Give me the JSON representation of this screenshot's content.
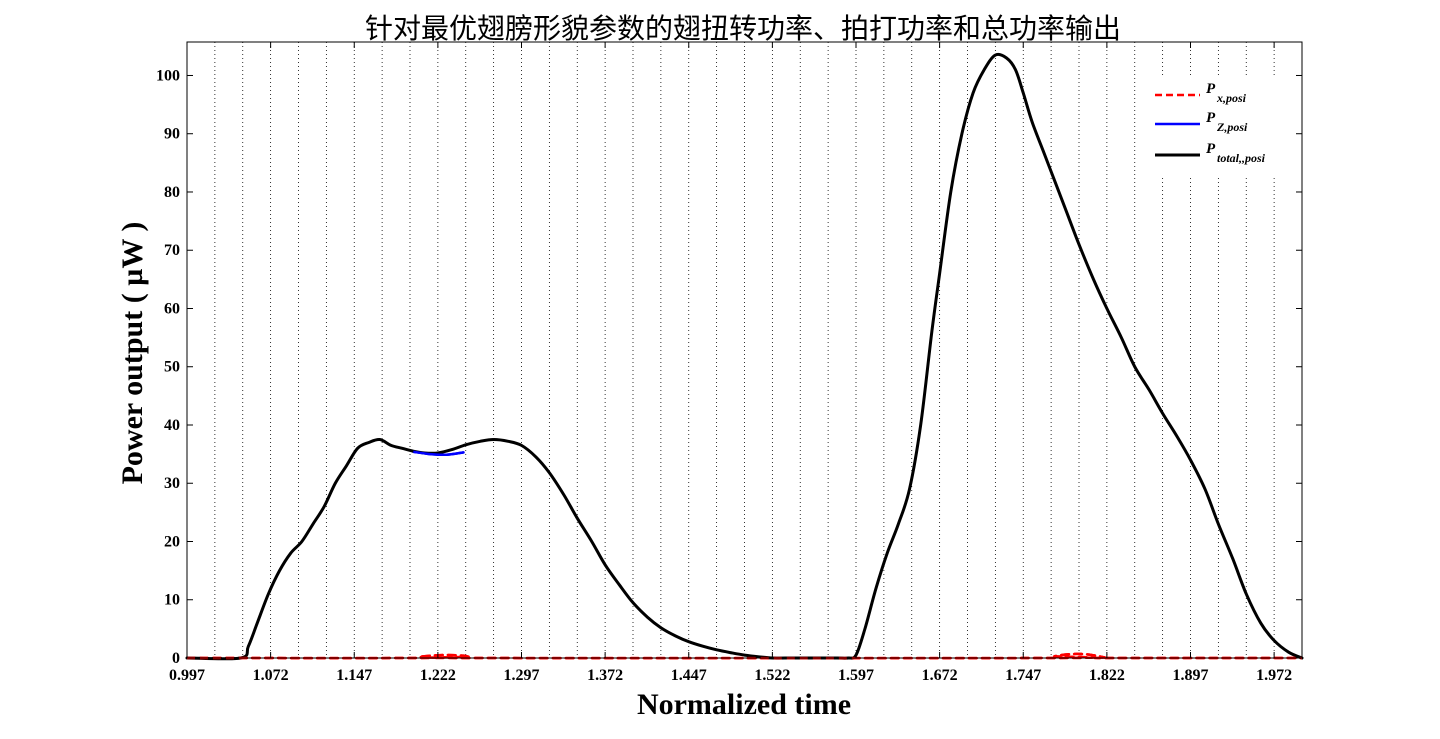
{
  "chart_data": {
    "type": "line",
    "title": "针对最优翅膀形貌参数的翅扭转功率、拍打功率和总功率输出",
    "xlabel": "Normalized time",
    "ylabel": "Power output ( µW )",
    "xlim": [
      0.997,
      1.997
    ],
    "ylim": [
      0,
      103
    ],
    "yticks": [
      0,
      10,
      20,
      30,
      40,
      50,
      60,
      70,
      80,
      90,
      100
    ],
    "xtick_labels": [
      "0.997",
      "1.072",
      "1.147",
      "1.222",
      "1.297",
      "1.372",
      "1.447",
      "1.522",
      "1.597",
      "1.672",
      "1.747",
      "1.822",
      "1.897",
      "1.972"
    ],
    "x_minor_grid_step": 0.025,
    "grid": "vertical dotted",
    "legend": {
      "position": "top-right",
      "entries": [
        {
          "main": "P",
          "sub": "x,posi",
          "color": "#ff0000",
          "style": "dashed"
        },
        {
          "main": "P",
          "sub": "Z,posi",
          "color": "#0000ff",
          "style": "solid"
        },
        {
          "main": "P",
          "sub": "total,,posi",
          "color": "#000000",
          "style": "solid"
        }
      ]
    },
    "series": [
      {
        "color": "#ff0000",
        "style": "dashed",
        "x": [
          0.997,
          1.2,
          1.205,
          1.215,
          1.225,
          1.235,
          1.245,
          1.25,
          1.255,
          1.77,
          1.775,
          1.785,
          1.795,
          1.805,
          1.815,
          1.82,
          1.825,
          1.997
        ],
        "y": [
          0,
          0,
          0.2,
          0.4,
          0.5,
          0.5,
          0.4,
          0.2,
          0,
          0,
          0.3,
          0.6,
          0.7,
          0.6,
          0.3,
          0.1,
          0,
          0
        ]
      },
      {
        "color": "#0000ff",
        "style": "solid",
        "x": [
          1.2,
          1.215,
          1.23,
          1.245
        ],
        "y": [
          35.4,
          35.0,
          34.9,
          35.3
        ]
      },
      {
        "color": "#000000",
        "style": "solid",
        "x": [
          0.997,
          1.045,
          1.052,
          1.06,
          1.07,
          1.08,
          1.09,
          1.1,
          1.11,
          1.12,
          1.13,
          1.14,
          1.15,
          1.16,
          1.17,
          1.18,
          1.19,
          1.2,
          1.21,
          1.222,
          1.235,
          1.247,
          1.26,
          1.272,
          1.285,
          1.297,
          1.31,
          1.322,
          1.335,
          1.347,
          1.36,
          1.372,
          1.385,
          1.397,
          1.41,
          1.422,
          1.435,
          1.447,
          1.46,
          1.472,
          1.485,
          1.497,
          1.51,
          1.522,
          1.54,
          1.56,
          1.58,
          1.59,
          1.597,
          1.605,
          1.615,
          1.625,
          1.635,
          1.645,
          1.655,
          1.665,
          1.672,
          1.682,
          1.692,
          1.702,
          1.712,
          1.722,
          1.732,
          1.74,
          1.747,
          1.755,
          1.765,
          1.775,
          1.785,
          1.797,
          1.81,
          1.822,
          1.835,
          1.847,
          1.86,
          1.872,
          1.885,
          1.897,
          1.91,
          1.922,
          1.935,
          1.947,
          1.96,
          1.972,
          1.985,
          1.997
        ],
        "y": [
          0,
          0,
          2,
          6,
          11,
          15,
          18,
          20,
          23,
          26,
          30,
          33,
          36,
          37,
          37.5,
          36.5,
          36,
          35.5,
          35.2,
          35.2,
          35.8,
          36.6,
          37.2,
          37.5,
          37.2,
          36.5,
          34.5,
          31.8,
          28,
          24,
          20,
          16,
          12.5,
          9.5,
          7,
          5.2,
          3.8,
          2.8,
          2,
          1.4,
          0.9,
          0.5,
          0.2,
          0,
          0,
          0,
          0,
          0,
          0.5,
          5,
          12,
          18,
          23,
          29,
          40,
          56,
          66,
          80,
          90,
          97,
          101,
          103.5,
          103,
          101,
          97,
          92,
          87,
          82,
          77,
          71,
          65,
          60,
          55,
          50,
          46,
          42,
          38,
          34,
          29,
          23,
          17,
          11,
          6,
          3,
          1,
          0
        ]
      }
    ]
  }
}
